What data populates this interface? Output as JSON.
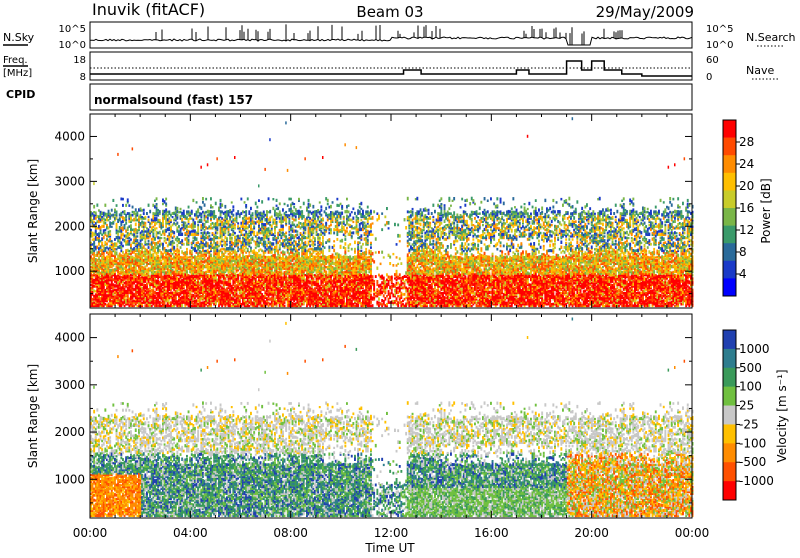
{
  "header": {
    "station": "Inuvik (fitACF)",
    "beam": "Beam 03",
    "date": "29/May/2009"
  },
  "top_panels": {
    "nsky_label": "N.Sky",
    "nsky_ticks": [
      "10^5",
      "10^0"
    ],
    "nsearch_label": "N.Search",
    "nsearch_ticks": [
      "10^5",
      "10^0"
    ],
    "freq_label_1": "Freq.",
    "freq_label_2": "[MHz]",
    "freq_ticks": [
      "18",
      "8"
    ],
    "nave_label": "Nave",
    "nave_ticks": [
      "60",
      "0"
    ],
    "cpid_label": "CPID",
    "cpid_value": "normalsound (fast) 157"
  },
  "chart_data": [
    {
      "type": "heatmap",
      "ylabel": "Slant Range [km]",
      "y_ticks": [
        "1000",
        "2000",
        "3000",
        "4000"
      ],
      "ylim": [
        180,
        4500
      ],
      "xlim_hours": [
        0,
        24
      ],
      "colorbar_label": "Power [dB]",
      "colorbar_ticks": [
        "28",
        "24",
        "20",
        "16",
        "12",
        "8",
        "4"
      ],
      "colorbar_colors": [
        "#ff0000",
        "#ff4a00",
        "#ff8c00",
        "#ffbf00",
        "#c8cc2a",
        "#7ab648",
        "#3a9a6a",
        "#2a6a9a",
        "#1a3ac8",
        "#0000ff"
      ]
    },
    {
      "type": "heatmap",
      "xlabel": "Time UT",
      "x_ticks": [
        "00:00",
        "04:00",
        "08:00",
        "12:00",
        "16:00",
        "20:00",
        "00:00"
      ],
      "ylabel": "Slant Range [km]",
      "y_ticks": [
        "1000",
        "2000",
        "3000",
        "4000"
      ],
      "ylim": [
        180,
        4500
      ],
      "xlim_hours": [
        0,
        24
      ],
      "colorbar_label": "Velocity [m s⁻¹]",
      "colorbar_ticks": [
        "1000",
        "500",
        "100",
        "25",
        "-25",
        "-100",
        "-500",
        "-1000"
      ],
      "colorbar_colors": [
        "#2040b0",
        "#2e7d8e",
        "#3a9a5a",
        "#70c040",
        "#c8c8c8",
        "#ffc000",
        "#ff8c00",
        "#ff5000",
        "#ff0000"
      ]
    }
  ]
}
